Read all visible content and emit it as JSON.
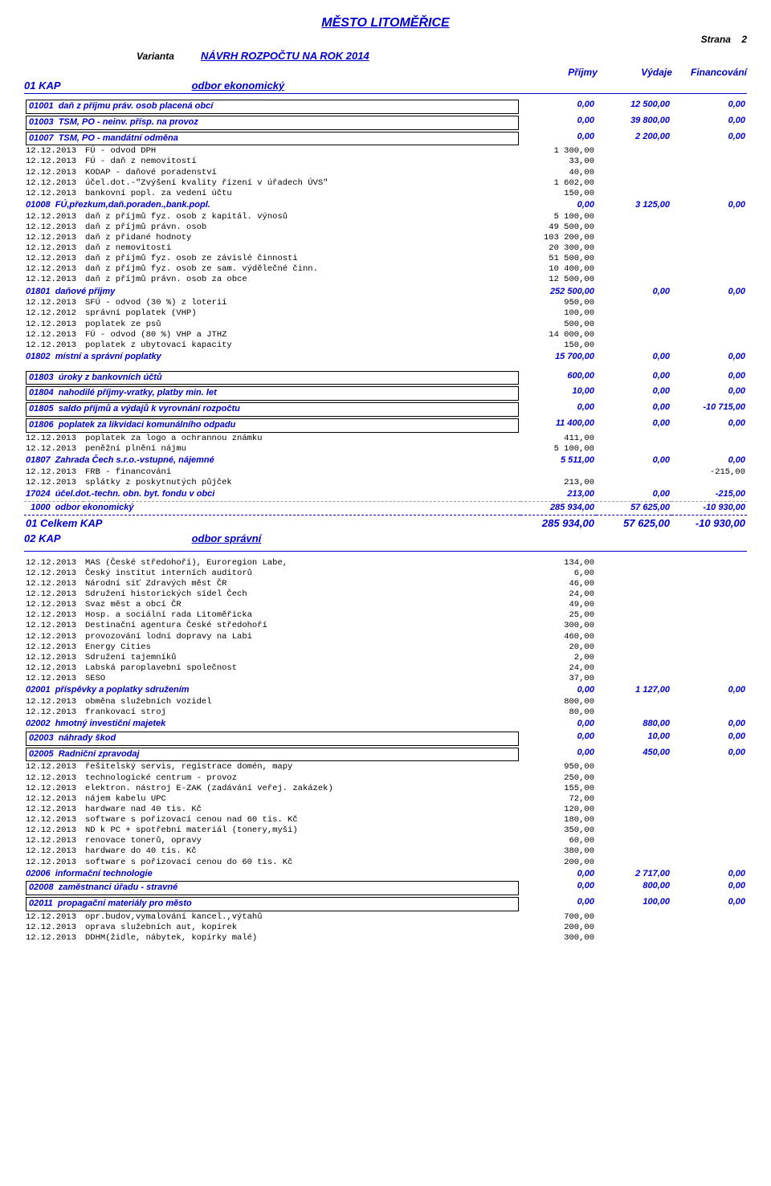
{
  "page": {
    "title": "MĚSTO LITOMĚŘICE",
    "strana_label": "Strana",
    "strana_num": "2",
    "varianta": "Varianta",
    "navrh": "NÁVRH ROZPOČTU NA ROK 2014",
    "col_prijmy": "Příjmy",
    "col_vydaje": "Výdaje",
    "col_financ": "Financování"
  },
  "kap01": {
    "code": "01   KAP",
    "name": "odbor ekonomický",
    "sections": [
      {
        "type": "section",
        "box": true,
        "code": "01001",
        "label": "daň z příjmu práv. osob placená obcí",
        "v": [
          "0,00",
          "12 500,00",
          "0,00"
        ]
      },
      {
        "type": "section",
        "box": true,
        "code": "01003",
        "label": "TSM, PO - neinv. přísp. na provoz",
        "v": [
          "0,00",
          "39 800,00",
          "0,00"
        ]
      },
      {
        "type": "section",
        "box": true,
        "code": "01007",
        "label": "TSM, PO - mandátní odměna",
        "v": [
          "0,00",
          "2 200,00",
          "0,00"
        ]
      },
      {
        "type": "row",
        "date": "12.12.2013",
        "desc": "FÚ - odvod DPH",
        "v": [
          "1 300,00",
          "",
          ""
        ]
      },
      {
        "type": "row",
        "date": "12.12.2013",
        "desc": "FÚ - daň z nemovitostí",
        "v": [
          "33,00",
          "",
          ""
        ]
      },
      {
        "type": "row",
        "date": "12.12.2013",
        "desc": "KODAP - daňové poradenství",
        "v": [
          "40,00",
          "",
          ""
        ]
      },
      {
        "type": "row",
        "date": "12.12.2013",
        "desc": "účel.dot.-\"Zvýšení kvality řízení v úřadech ÚVS\"",
        "v": [
          "1 602,00",
          "",
          ""
        ]
      },
      {
        "type": "row",
        "date": "12.12.2013",
        "desc": "bankovní popl. za vedení účtu",
        "v": [
          "150,00",
          "",
          ""
        ]
      },
      {
        "type": "section",
        "box": false,
        "code": "01008",
        "label": "FÚ,přezkum,daň.poraden.,bank.popl.",
        "v": [
          "0,00",
          "3 125,00",
          "0,00"
        ]
      },
      {
        "type": "row",
        "date": "12.12.2013",
        "desc": "daň z příjmů fyz. osob z kapitál. výnosů",
        "v": [
          "5 100,00",
          "",
          ""
        ]
      },
      {
        "type": "row",
        "date": "12.12.2013",
        "desc": "daň z příjmů právn. osob",
        "v": [
          "49 500,00",
          "",
          ""
        ]
      },
      {
        "type": "row",
        "date": "12.12.2013",
        "desc": "daň z přidané hodnoty",
        "v": [
          "103 200,00",
          "",
          ""
        ]
      },
      {
        "type": "row",
        "date": "12.12.2013",
        "desc": "daň z nemovitostí",
        "v": [
          "20 300,00",
          "",
          ""
        ]
      },
      {
        "type": "row",
        "date": "12.12.2013",
        "desc": "daň z příjmů fyz. osob ze závislé činnosti",
        "v": [
          "51 500,00",
          "",
          ""
        ]
      },
      {
        "type": "row",
        "date": "12.12.2013",
        "desc": "daň z příjmů fyz. osob ze sam. výdělečné činn.",
        "v": [
          "10 400,00",
          "",
          ""
        ]
      },
      {
        "type": "row",
        "date": "12.12.2013",
        "desc": "daň z příjmů právn. osob za obce",
        "v": [
          "12 500,00",
          "",
          ""
        ]
      },
      {
        "type": "section",
        "box": false,
        "code": "01801",
        "label": "daňové příjmy",
        "v": [
          "252 500,00",
          "0,00",
          "0,00"
        ]
      },
      {
        "type": "row",
        "date": "12.12.2013",
        "desc": "SFÚ - odvod (30 %) z loterií",
        "v": [
          "950,00",
          "",
          ""
        ]
      },
      {
        "type": "row",
        "date": "12.12.2012",
        "desc": "správní poplatek (VHP)",
        "v": [
          "100,00",
          "",
          ""
        ]
      },
      {
        "type": "row",
        "date": "12.12.2013",
        "desc": "poplatek ze psů",
        "v": [
          "500,00",
          "",
          ""
        ]
      },
      {
        "type": "row",
        "date": "12.12.2013",
        "desc": "FÚ - odvod (80 %) VHP a JTHZ",
        "v": [
          "14 000,00",
          "",
          ""
        ]
      },
      {
        "type": "row",
        "date": "12.12.2013",
        "desc": "poplatek z ubytovací kapacity",
        "v": [
          "150,00",
          "",
          ""
        ]
      },
      {
        "type": "section",
        "box": false,
        "code": "01802",
        "label": "místní a správní poplatky",
        "v": [
          "15 700,00",
          "0,00",
          "0,00"
        ]
      },
      {
        "type": "gap"
      },
      {
        "type": "section",
        "box": true,
        "code": "01803",
        "label": "úroky z bankovních účtů",
        "v": [
          "600,00",
          "0,00",
          "0,00"
        ]
      },
      {
        "type": "section",
        "box": true,
        "code": "01804",
        "label": "nahodilé příjmy-vratky, platby min. let",
        "v": [
          "10,00",
          "0,00",
          "0,00"
        ]
      },
      {
        "type": "section",
        "box": true,
        "code": "01805",
        "label": "saldo příjmů a výdajů k vyrovnání rozpočtu",
        "v": [
          "0,00",
          "0,00",
          "-10 715,00"
        ]
      },
      {
        "type": "section",
        "box": true,
        "code": "01806",
        "label": "poplatek za likvidaci komunálního odpadu",
        "v": [
          "11 400,00",
          "0,00",
          "0,00"
        ]
      },
      {
        "type": "row",
        "date": "12.12.2013",
        "desc": "poplatek za logo a ochrannou známku",
        "v": [
          "411,00",
          "",
          ""
        ]
      },
      {
        "type": "row",
        "date": "12.12.2013",
        "desc": "peněžní plnění nájmu",
        "v": [
          "5 100,00",
          "",
          ""
        ]
      },
      {
        "type": "section",
        "box": false,
        "code": "01807",
        "label": "Zahrada Čech s.r.o.-vstupné, nájemné",
        "v": [
          "5 511,00",
          "0,00",
          "0,00"
        ]
      },
      {
        "type": "row",
        "date": "12.12.2013",
        "desc": "FRB - financování",
        "v": [
          "",
          "",
          "-215,00"
        ]
      },
      {
        "type": "row",
        "date": "12.12.2013",
        "desc": "splátky z poskytnutých půjček",
        "v": [
          "213,00",
          "",
          ""
        ]
      },
      {
        "type": "section",
        "box": false,
        "code": "17024",
        "label": "účel.dot.-techn. obn. byt. fondu v obci",
        "v": [
          "213,00",
          "0,00",
          "-215,00"
        ]
      },
      {
        "type": "subtotal",
        "code": "1000",
        "label": "odbor ekonomický",
        "v": [
          "285 934,00",
          "57 625,00",
          "-10 930,00"
        ]
      }
    ],
    "total": {
      "label": "01   Celkem KAP",
      "v": [
        "285 934,00",
        "57 625,00",
        "-10 930,00"
      ]
    }
  },
  "kap02": {
    "code": "02   KAP",
    "name": "odbor správní",
    "sections": [
      {
        "type": "row",
        "date": "12.12.2013",
        "desc": "MAS (České středohoří), Euroregion Labe,",
        "v": [
          "134,00",
          "",
          ""
        ]
      },
      {
        "type": "row",
        "date": "12.12.2013",
        "desc": "Český institut interních auditorů",
        "v": [
          "6,00",
          "",
          ""
        ]
      },
      {
        "type": "row",
        "date": "12.12.2013",
        "desc": "Národní síť Zdravých měst ČR",
        "v": [
          "46,00",
          "",
          ""
        ]
      },
      {
        "type": "row",
        "date": "12.12.2013",
        "desc": "Sdružení historických sídel Čech",
        "v": [
          "24,00",
          "",
          ""
        ]
      },
      {
        "type": "row",
        "date": "12.12.2013",
        "desc": "Svaz měst a obcí ČR",
        "v": [
          "49,00",
          "",
          ""
        ]
      },
      {
        "type": "row",
        "date": "12.12.2013",
        "desc": "Hosp. a sociální rada Litoměřicka",
        "v": [
          "25,00",
          "",
          ""
        ]
      },
      {
        "type": "row",
        "date": "12.12.2013",
        "desc": "Destinační agentura České středohoří",
        "v": [
          "300,00",
          "",
          ""
        ]
      },
      {
        "type": "row",
        "date": "12.12.2013",
        "desc": "provozování lodní dopravy na Labi",
        "v": [
          "460,00",
          "",
          ""
        ]
      },
      {
        "type": "row",
        "date": "12.12.2013",
        "desc": "Energy Cities",
        "v": [
          "20,00",
          "",
          ""
        ]
      },
      {
        "type": "row",
        "date": "12.12.2013",
        "desc": "Sdružení tajemníků",
        "v": [
          "2,00",
          "",
          ""
        ]
      },
      {
        "type": "row",
        "date": "12.12.2013",
        "desc": "Labská paroplavební společnost",
        "v": [
          "24,00",
          "",
          ""
        ]
      },
      {
        "type": "row",
        "date": "12.12.2013",
        "desc": "SESO",
        "v": [
          "37,00",
          "",
          ""
        ]
      },
      {
        "type": "section",
        "box": false,
        "code": "02001",
        "label": "příspěvky a poplatky sdružením",
        "v": [
          "0,00",
          "1 127,00",
          "0,00"
        ]
      },
      {
        "type": "row",
        "date": "12.12.2013",
        "desc": "obměna služebních vozidel",
        "v": [
          "800,00",
          "",
          ""
        ]
      },
      {
        "type": "row",
        "date": "12.12.2013",
        "desc": "frankovací stroj",
        "v": [
          "80,00",
          "",
          ""
        ]
      },
      {
        "type": "section",
        "box": false,
        "code": "02002",
        "label": "hmotný investiční majetek",
        "v": [
          "0,00",
          "880,00",
          "0,00"
        ]
      },
      {
        "type": "section",
        "box": true,
        "code": "02003",
        "label": "náhrady škod",
        "v": [
          "0,00",
          "10,00",
          "0,00"
        ]
      },
      {
        "type": "section",
        "box": true,
        "code": "02005",
        "label": "Radniční zpravodaj",
        "v": [
          "0,00",
          "450,00",
          "0,00"
        ]
      },
      {
        "type": "row",
        "date": "12.12.2013",
        "desc": "řešitelský servis, registrace domén, mapy",
        "v": [
          "950,00",
          "",
          ""
        ]
      },
      {
        "type": "row",
        "date": "12.12.2013",
        "desc": "technologické centrum - provoz",
        "v": [
          "250,00",
          "",
          ""
        ]
      },
      {
        "type": "row",
        "date": "12.12.2013",
        "desc": "elektron. nástroj E-ZAK (zadávání veřej. zakázek)",
        "v": [
          "155,00",
          "",
          ""
        ]
      },
      {
        "type": "row",
        "date": "12.12.2013",
        "desc": "nájem kabelu UPC",
        "v": [
          "72,00",
          "",
          ""
        ]
      },
      {
        "type": "row",
        "date": "12.12.2013",
        "desc": "hardware nad 40 tis. Kč",
        "v": [
          "120,00",
          "",
          ""
        ]
      },
      {
        "type": "row",
        "date": "12.12.2013",
        "desc": "software s pořizovací cenou nad 60 tis. Kč",
        "v": [
          "180,00",
          "",
          ""
        ]
      },
      {
        "type": "row",
        "date": "12.12.2013",
        "desc": "ND k PC + spotřební materiál (tonery,myši)",
        "v": [
          "350,00",
          "",
          ""
        ]
      },
      {
        "type": "row",
        "date": "12.12.2013",
        "desc": "renovace tonerů, opravy",
        "v": [
          "60,00",
          "",
          ""
        ]
      },
      {
        "type": "row",
        "date": "12.12.2013",
        "desc": "hardware do 40 tis. Kč",
        "v": [
          "380,00",
          "",
          ""
        ]
      },
      {
        "type": "row",
        "date": "12.12.2013",
        "desc": "software s pořizovací cenou do 60 tis. Kč",
        "v": [
          "200,00",
          "",
          ""
        ]
      },
      {
        "type": "section",
        "box": false,
        "code": "02006",
        "label": "informační technologie",
        "v": [
          "0,00",
          "2 717,00",
          "0,00"
        ]
      },
      {
        "type": "section",
        "box": true,
        "code": "02008",
        "label": "zaměstnanci úřadu - stravné",
        "v": [
          "0,00",
          "800,00",
          "0,00"
        ]
      },
      {
        "type": "section",
        "box": true,
        "code": "02011",
        "label": "propagační materiály pro město",
        "v": [
          "0,00",
          "100,00",
          "0,00"
        ]
      },
      {
        "type": "row",
        "date": "12.12.2013",
        "desc": "opr.budov,vymalování kancel.,výtahů",
        "v": [
          "700,00",
          "",
          ""
        ]
      },
      {
        "type": "row",
        "date": "12.12.2013",
        "desc": "oprava služebních aut, kopírek",
        "v": [
          "200,00",
          "",
          ""
        ]
      },
      {
        "type": "row",
        "date": "12.12.2013",
        "desc": "DDHM(židle, nábytek, kopírky malé)",
        "v": [
          "300,00",
          "",
          ""
        ]
      }
    ]
  }
}
